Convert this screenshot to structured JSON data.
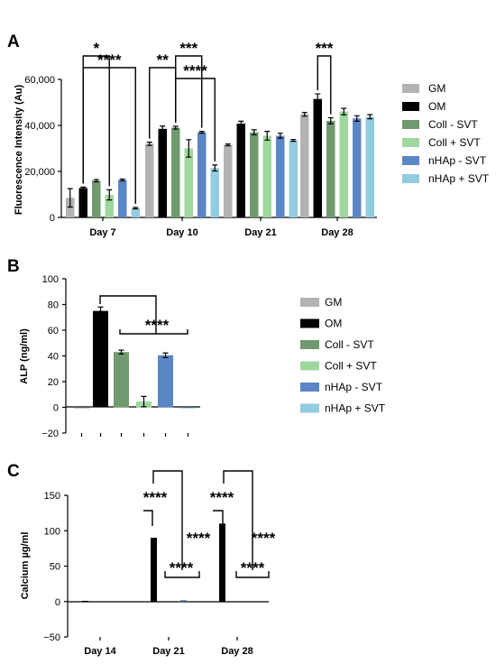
{
  "colors": {
    "GM": "#b3b3b3",
    "OM": "#000000",
    "Coll - SVT": "#6f9a6f",
    "Coll + SVT": "#9fd89f",
    "nHAp - SVT": "#5b86c6",
    "nHAp + SVT": "#92cce0"
  },
  "chart_data": [
    {
      "panel": "A",
      "type": "bar",
      "ylabel": "Fluorescence Intensity (Au)",
      "ylim": [
        0,
        60000
      ],
      "yticks": [
        0,
        20000,
        40000,
        60000
      ],
      "ytick_labels": [
        "0",
        "20,000",
        "40,000",
        "60,000"
      ],
      "categories": [
        "Day 7",
        "Day 10",
        "Day 21",
        "Day 28"
      ],
      "legend": [
        "GM",
        "OM",
        "Coll - SVT",
        "Coll + SVT",
        "nHAp - SVT",
        "nHAp + SVT"
      ],
      "legend_position": "right",
      "series": [
        {
          "name": "GM",
          "values": [
            8500,
            32000,
            31500,
            44800
          ],
          "errors": [
            4000,
            700,
            400,
            800
          ]
        },
        {
          "name": "OM",
          "values": [
            12800,
            38500,
            40800,
            51500
          ],
          "errors": [
            400,
            1200,
            1000,
            2200
          ]
        },
        {
          "name": "Coll - SVT",
          "values": [
            16000,
            39000,
            37000,
            42000
          ],
          "errors": [
            500,
            600,
            1100,
            1300
          ]
        },
        {
          "name": "Coll + SVT",
          "values": [
            9800,
            30000,
            35500,
            46000
          ],
          "errors": [
            2200,
            3800,
            1900,
            1400
          ]
        },
        {
          "name": "nHAp - SVT",
          "values": [
            16300,
            37000,
            35500,
            43000
          ],
          "errors": [
            400,
            400,
            1100,
            1200
          ]
        },
        {
          "name": "nHAp + SVT",
          "values": [
            4000,
            21500,
            33500,
            43800
          ],
          "errors": [
            300,
            1300,
            400,
            900
          ]
        }
      ],
      "significance": [
        {
          "label": "*",
          "group": 0,
          "from": 1,
          "to": 3,
          "level": 62
        },
        {
          "label": "****",
          "group": 0,
          "from": 1,
          "to": 5,
          "level": 75
        },
        {
          "label": "**",
          "group": 1,
          "from": 0,
          "to": 2,
          "level": 75
        },
        {
          "label": "***",
          "group": 1,
          "from": 2,
          "to": 4,
          "level": 62
        },
        {
          "label": "****",
          "group": 1,
          "from": 2,
          "to": 5,
          "level": 87
        },
        {
          "label": "***",
          "group": 3,
          "from": 1,
          "to": 2,
          "level": 62
        }
      ]
    },
    {
      "panel": "B",
      "type": "bar",
      "ylabel": "ALP (ng/ml)",
      "ylim": [
        -20,
        100
      ],
      "yticks": [
        -20,
        0,
        20,
        40,
        60,
        80,
        100
      ],
      "ytick_labels": [
        "−20",
        "0",
        "20",
        "40",
        "60",
        "80",
        "100"
      ],
      "legend": [
        "GM",
        "OM",
        "Coll - SVT",
        "Coll + SVT",
        "nHAp - SVT",
        "nHAp + SVT"
      ],
      "legend_position": "right",
      "series": [
        {
          "name": "GM",
          "value": -0.5,
          "error": 0
        },
        {
          "name": "OM",
          "value": 75,
          "error": 3
        },
        {
          "name": "Coll - SVT",
          "value": 43,
          "error": 1.5
        },
        {
          "name": "Coll + SVT",
          "value": 4.5,
          "error": 4
        },
        {
          "name": "nHAp - SVT",
          "value": 40.5,
          "error": 1.8
        },
        {
          "name": "nHAp + SVT",
          "value": -0.5,
          "error": 0
        }
      ],
      "significance": [
        {
          "label": "****",
          "from": 2,
          "to": 5
        }
      ]
    },
    {
      "panel": "C",
      "type": "bar",
      "ylabel": "Calcium µg/ml",
      "ylim": [
        -50,
        150
      ],
      "yticks": [
        -50,
        0,
        50,
        100,
        150
      ],
      "ytick_labels": [
        "−50",
        "0",
        "50",
        "100",
        "150"
      ],
      "categories": [
        "Day 14",
        "Day 21",
        "Day 28"
      ],
      "series": [
        {
          "name": "GM",
          "values": [
            0,
            0,
            0
          ]
        },
        {
          "name": "OM",
          "values": [
            1,
            90,
            110
          ]
        },
        {
          "name": "Coll - SVT",
          "values": [
            0,
            0,
            0
          ]
        },
        {
          "name": "Coll + SVT",
          "values": [
            0,
            0,
            0
          ]
        },
        {
          "name": "nHAp - SVT",
          "values": [
            0,
            2,
            0
          ]
        },
        {
          "name": "nHAp + SVT",
          "values": [
            0,
            0,
            0
          ]
        }
      ],
      "significance": [
        {
          "label": "****",
          "group": 1
        },
        {
          "label": "****",
          "group": 1
        },
        {
          "label": "****",
          "group": 1
        },
        {
          "label": "****",
          "group": 2
        },
        {
          "label": "****",
          "group": 2
        },
        {
          "label": "****",
          "group": 2
        }
      ]
    }
  ],
  "panel_labels": [
    "A",
    "B",
    "C"
  ]
}
